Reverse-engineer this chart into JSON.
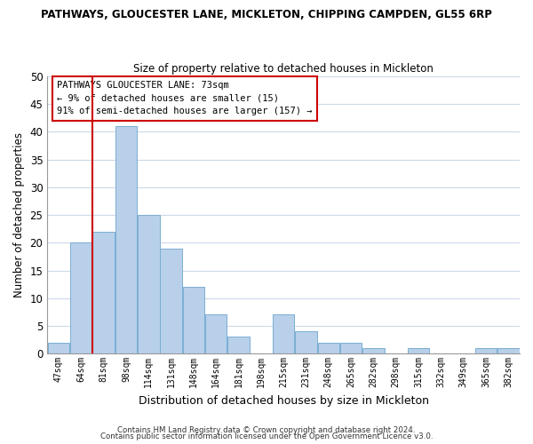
{
  "title1": "PATHWAYS, GLOUCESTER LANE, MICKLETON, CHIPPING CAMPDEN, GL55 6RP",
  "title2": "Size of property relative to detached houses in Mickleton",
  "xlabel": "Distribution of detached houses by size in Mickleton",
  "ylabel": "Number of detached properties",
  "bar_labels": [
    "47sqm",
    "64sqm",
    "81sqm",
    "98sqm",
    "114sqm",
    "131sqm",
    "148sqm",
    "164sqm",
    "181sqm",
    "198sqm",
    "215sqm",
    "231sqm",
    "248sqm",
    "265sqm",
    "282sqm",
    "298sqm",
    "315sqm",
    "332sqm",
    "349sqm",
    "365sqm",
    "382sqm"
  ],
  "bar_heights": [
    2,
    20,
    22,
    41,
    25,
    19,
    12,
    7,
    3,
    0,
    7,
    4,
    2,
    2,
    1,
    0,
    1,
    0,
    0,
    1,
    1
  ],
  "bar_color": "#b8d0ea",
  "bar_edge_color": "#7aaed4",
  "vline_x": 1.5,
  "vline_color": "#cc0000",
  "ylim": [
    0,
    50
  ],
  "yticks": [
    0,
    5,
    10,
    15,
    20,
    25,
    30,
    35,
    40,
    45,
    50
  ],
  "annotation_line1": "PATHWAYS GLOUCESTER LANE: 73sqm",
  "annotation_line2": "← 9% of detached houses are smaller (15)",
  "annotation_line3": "91% of semi-detached houses are larger (157) →",
  "annotation_box_color": "#ffffff",
  "annotation_box_edge_color": "#cc0000",
  "footer1": "Contains HM Land Registry data © Crown copyright and database right 2024.",
  "footer2": "Contains public sector information licensed under the Open Government Licence v3.0.",
  "bg_color": "#ffffff",
  "grid_color": "#ccd8ea"
}
